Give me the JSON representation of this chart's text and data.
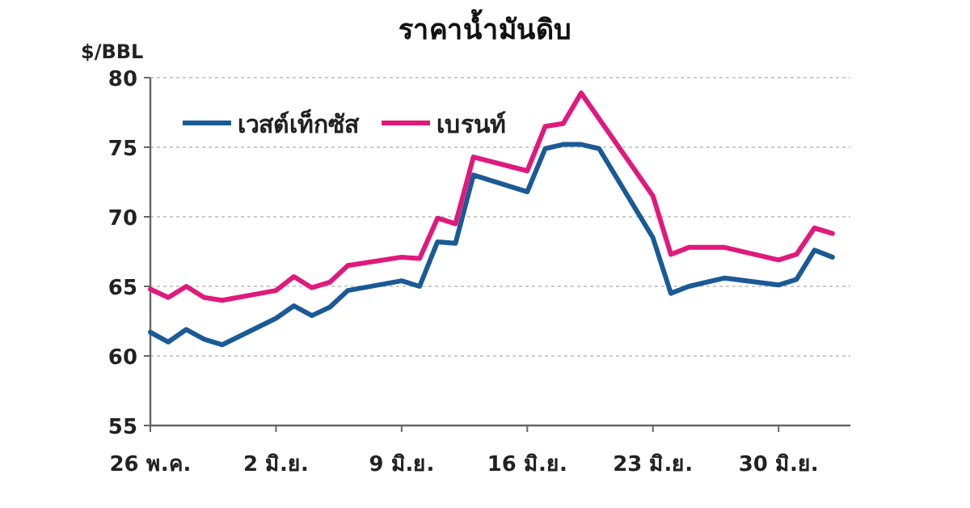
{
  "chart_data": {
    "type": "line",
    "title": "ราคาน้ำมันดิบ",
    "ylabel": "$/BBL",
    "xlim": [
      "--05-26",
      "--07-04"
    ],
    "ylim": [
      55,
      80
    ],
    "yticks": [
      55,
      60,
      65,
      70,
      75,
      80
    ],
    "xticks": [
      {
        "value": "--05-26",
        "label": "26 พ.ค."
      },
      {
        "value": "--06-02",
        "label": "2 มิ.ย."
      },
      {
        "value": "--06-09",
        "label": "9 มิ.ย."
      },
      {
        "value": "--06-16",
        "label": "16 มิ.ย."
      },
      {
        "value": "--06-23",
        "label": "23 มิ.ย."
      },
      {
        "value": "--06-30",
        "label": "30 มิ.ย."
      }
    ],
    "grid": "y",
    "legend": "top left",
    "line_style": "solid",
    "marker": "none",
    "series": [
      {
        "name": "เวสต์เท็กซัส",
        "color": "#1a5a96",
        "x": [
          "--05-26",
          "--05-27",
          "--05-28",
          "--05-29",
          "--05-30",
          "--06-02",
          "--06-03",
          "--06-04",
          "--06-05",
          "--06-06",
          "--06-09",
          "--06-10",
          "--06-11",
          "--06-12",
          "--06-13",
          "--06-16",
          "--06-17",
          "--06-18",
          "--06-19",
          "--06-20",
          "--06-23",
          "--06-24",
          "--06-25",
          "--06-27",
          "--06-30",
          "--07-01",
          "--07-02",
          "--07-03"
        ],
        "values": [
          61.7,
          61.0,
          61.9,
          61.2,
          60.8,
          62.7,
          63.6,
          62.9,
          63.5,
          64.7,
          65.4,
          65.0,
          68.2,
          68.1,
          73.0,
          71.8,
          74.9,
          75.2,
          75.2,
          74.9,
          68.5,
          64.5,
          65.0,
          65.6,
          65.1,
          65.5,
          67.6,
          67.1
        ]
      },
      {
        "name": "เบรนท์",
        "color": "#e0197d",
        "x": [
          "--05-26",
          "--05-27",
          "--05-28",
          "--05-29",
          "--05-30",
          "--06-02",
          "--06-03",
          "--06-04",
          "--06-05",
          "--06-06",
          "--06-09",
          "--06-10",
          "--06-11",
          "--06-12",
          "--06-13",
          "--06-16",
          "--06-17",
          "--06-18",
          "--06-19",
          "--06-23",
          "--06-24",
          "--06-25",
          "--06-27",
          "--06-30",
          "--07-01",
          "--07-02",
          "--07-03"
        ],
        "values": [
          64.8,
          64.2,
          65.0,
          64.2,
          64.0,
          64.7,
          65.7,
          64.9,
          65.3,
          66.5,
          67.1,
          67.0,
          69.9,
          69.5,
          74.3,
          73.3,
          76.5,
          76.7,
          78.9,
          71.5,
          67.3,
          67.8,
          67.8,
          66.9,
          67.3,
          69.2,
          68.8
        ]
      }
    ]
  }
}
